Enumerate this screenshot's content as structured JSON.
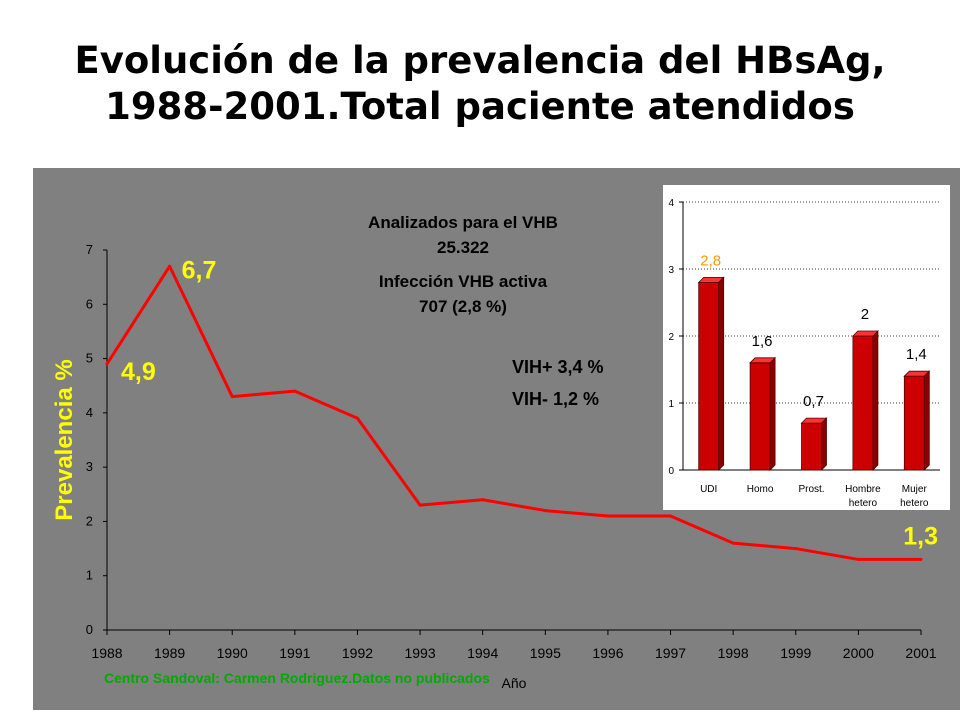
{
  "title_line1": "Evolución de la prevalencia del HBsAg,",
  "title_line2": "1988-2001.Total  paciente atendidos",
  "colors": {
    "background": "#808080",
    "line": "#ff0000",
    "annotation": "#ffff00",
    "inset_bg": "#ffffff",
    "bar": "#cc0000",
    "source": "#00aa00"
  },
  "chart_data": [
    {
      "type": "line",
      "title": "",
      "xlabel": "Año",
      "ylabel": "Prevalencia %",
      "x": [
        1988,
        1989,
        1990,
        1991,
        1992,
        1993,
        1994,
        1995,
        1996,
        1997,
        1998,
        1999,
        2000,
        2001
      ],
      "series": [
        {
          "values": [
            4.9,
            6.7,
            4.3,
            4.4,
            3.9,
            2.3,
            2.4,
            2.2,
            2.1,
            2.1,
            1.6,
            1.5,
            1.3,
            1.3
          ]
        }
      ],
      "ylim": [
        0,
        7
      ],
      "yticks": [
        "0",
        "1",
        "2",
        "3",
        "4",
        "5",
        "6",
        "7"
      ],
      "xticks": [
        "1988",
        "1989",
        "1990",
        "1991",
        "1992",
        "1993",
        "1994",
        "1995",
        "1996",
        "1997",
        "1998",
        "1999",
        "2000",
        "2001"
      ],
      "point_labels": [
        {
          "index": 0,
          "text": "4,9"
        },
        {
          "index": 1,
          "text": "6,7"
        },
        {
          "index": 13,
          "text": "1,3"
        }
      ],
      "annotations": {
        "analyzed_label": "Analizados para el VHB",
        "analyzed_count": "25.322",
        "active_label": "Infección VHB activa",
        "active_count": "707 (2,8 %)",
        "vih_pos": "VIH+  3,4  %",
        "vih_neg": "VIH-   1,2  %"
      },
      "source": "Centro Sandoval: Carmen  Rodriguez.Datos no publicados",
      "grid": false
    },
    {
      "type": "bar",
      "categories": [
        "UDI",
        "Homo",
        "Prost.",
        "Hombre\nhetero",
        "Mujer\nhetero"
      ],
      "values": [
        2.8,
        1.6,
        0.7,
        2.0,
        1.4
      ],
      "value_labels": [
        "2,8",
        "1,6",
        "0,7",
        "2",
        "1,4"
      ],
      "ylim": [
        0,
        4
      ],
      "yticks": [
        "0",
        "1",
        "2",
        "3",
        "4"
      ],
      "grid": true
    }
  ]
}
